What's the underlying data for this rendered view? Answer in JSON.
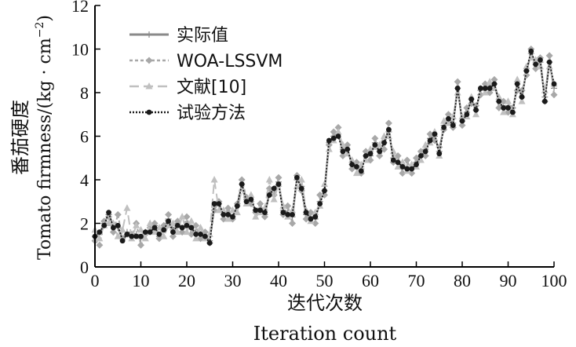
{
  "chart_data": {
    "type": "line",
    "xlabel_cn": "迭代次数",
    "xlabel_en": "Iteration count",
    "ylabel_cn": "番茄硬度",
    "ylabel_en": "Tomato firmness/(kg · cm",
    "ylabel_sup": "−2",
    "ylabel_end": ")",
    "xlim": [
      0,
      100
    ],
    "ylim": [
      0,
      12
    ],
    "xticks": [
      0,
      10,
      20,
      30,
      40,
      50,
      60,
      70,
      80,
      90,
      100
    ],
    "yticks": [
      0,
      2,
      4,
      6,
      8,
      10,
      12
    ],
    "legend_position": "top-left",
    "x": [
      0,
      1,
      2,
      3,
      4,
      5,
      6,
      7,
      8,
      9,
      10,
      11,
      12,
      13,
      14,
      15,
      16,
      17,
      18,
      19,
      20,
      21,
      22,
      23,
      24,
      25,
      26,
      27,
      28,
      29,
      30,
      31,
      32,
      33,
      34,
      35,
      36,
      37,
      38,
      39,
      40,
      41,
      42,
      43,
      44,
      45,
      46,
      47,
      48,
      49,
      50,
      51,
      52,
      53,
      54,
      55,
      56,
      57,
      58,
      59,
      60,
      61,
      62,
      63,
      64,
      65,
      66,
      67,
      68,
      69,
      70,
      71,
      72,
      73,
      74,
      75,
      76,
      77,
      78,
      79,
      80,
      81,
      82,
      83,
      84,
      85,
      86,
      87,
      88,
      89,
      90,
      91,
      92,
      93,
      94,
      95,
      96,
      97,
      98,
      99,
      100
    ],
    "series": [
      {
        "name": "实际值",
        "color": "#8a8a8a",
        "values": [
          1.4,
          1.5,
          2.0,
          2.4,
          1.9,
          1.8,
          1.3,
          1.6,
          1.5,
          1.5,
          1.3,
          1.6,
          1.6,
          1.9,
          1.4,
          1.8,
          2.2,
          1.7,
          2.0,
          1.8,
          2.0,
          1.8,
          1.6,
          1.5,
          1.4,
          1.2,
          2.8,
          2.9,
          2.4,
          2.5,
          2.3,
          2.8,
          3.8,
          3.1,
          3.0,
          2.6,
          2.7,
          2.4,
          3.4,
          3.6,
          3.9,
          2.6,
          2.5,
          2.3,
          4.0,
          3.7,
          2.4,
          2.3,
          2.2,
          3.0,
          3.5,
          5.7,
          6.0,
          6.1,
          5.4,
          5.4,
          4.7,
          4.5,
          4.5,
          5.1,
          5.1,
          5.7,
          5.3,
          5.7,
          6.2,
          5.0,
          4.8,
          4.5,
          4.6,
          4.5,
          4.8,
          5.1,
          5.4,
          5.9,
          6.0,
          5.3,
          6.5,
          6.8,
          6.6,
          8.2,
          6.7,
          7.1,
          7.7,
          7.2,
          8.1,
          8.2,
          8.3,
          8.4,
          7.6,
          7.3,
          7.4,
          7.1,
          8.4,
          7.8,
          9.0,
          9.8,
          9.3,
          9.4,
          7.8,
          9.4,
          8.2
        ]
      },
      {
        "name": "WOA-LSSVM",
        "color": "#a8a8a8",
        "values": [
          1.2,
          1.0,
          2.1,
          2.3,
          1.6,
          2.4,
          1.3,
          1.5,
          1.4,
          2.0,
          1.0,
          1.5,
          1.8,
          2.0,
          1.3,
          1.9,
          2.4,
          1.4,
          2.1,
          1.6,
          2.3,
          1.5,
          1.9,
          1.3,
          1.6,
          1.1,
          2.6,
          3.0,
          2.2,
          2.7,
          2.2,
          2.9,
          4.0,
          3.2,
          2.9,
          2.5,
          2.9,
          2.3,
          3.6,
          3.3,
          4.1,
          2.4,
          2.8,
          2.0,
          4.2,
          3.5,
          2.2,
          2.5,
          2.0,
          3.3,
          3.3,
          5.6,
          6.2,
          6.4,
          5.1,
          5.6,
          4.5,
          4.8,
          4.3,
          5.3,
          4.9,
          5.9,
          5.1,
          5.4,
          6.6,
          4.8,
          5.1,
          4.3,
          4.9,
          4.3,
          5.0,
          5.3,
          5.1,
          6.1,
          5.8,
          5.5,
          6.3,
          7.0,
          6.4,
          8.5,
          6.5,
          7.3,
          7.5,
          7.4,
          7.9,
          8.4,
          8.0,
          8.6,
          7.3,
          7.6,
          7.1,
          7.3,
          8.1,
          8.1,
          8.8,
          10.0,
          9.1,
          9.6,
          7.6,
          9.7,
          7.9
        ]
      },
      {
        "name": "文献[10]",
        "color": "#c0c0c0",
        "values": [
          1.7,
          1.3,
          1.9,
          2.0,
          2.0,
          1.4,
          1.7,
          2.7,
          1.3,
          1.9,
          1.7,
          1.3,
          2.0,
          1.6,
          1.8,
          1.4,
          1.9,
          2.0,
          1.6,
          2.3,
          1.6,
          2.1,
          1.3,
          1.8,
          1.3,
          1.5,
          4.0,
          2.6,
          2.6,
          2.2,
          2.6,
          2.5,
          3.6,
          2.9,
          3.3,
          2.3,
          2.5,
          2.7,
          4.0,
          3.1,
          3.8,
          2.8,
          2.3,
          2.6,
          3.7,
          4.0,
          2.6,
          2.1,
          2.5,
          2.8,
          3.8,
          5.4,
          5.8,
          6.2,
          5.6,
          5.2,
          4.9,
          4.3,
          4.7,
          4.9,
          5.4,
          5.5,
          5.6,
          6.0,
          6.0,
          5.3,
          4.6,
          4.8,
          4.4,
          4.7,
          4.6,
          4.9,
          5.6,
          5.7,
          6.2,
          5.1,
          6.7,
          6.6,
          6.9,
          8.0,
          6.9,
          6.9,
          7.8,
          7.0,
          8.2,
          8.0,
          8.5,
          8.2,
          7.8,
          7.1,
          7.6,
          7.0,
          8.6,
          7.6,
          9.2,
          9.6,
          9.5,
          9.2,
          8.1,
          9.2,
          8.4
        ]
      },
      {
        "name": "试验方法",
        "color": "#1a1a1a",
        "values": [
          1.4,
          1.6,
          1.9,
          2.5,
          1.8,
          1.9,
          1.2,
          1.5,
          1.4,
          1.4,
          1.4,
          1.6,
          1.6,
          1.8,
          1.5,
          1.7,
          2.1,
          1.6,
          1.9,
          1.8,
          1.9,
          1.8,
          1.5,
          1.5,
          1.4,
          1.1,
          2.9,
          2.9,
          2.4,
          2.4,
          2.3,
          2.8,
          3.8,
          3.0,
          3.1,
          2.6,
          2.6,
          2.5,
          3.3,
          3.6,
          3.8,
          2.5,
          2.4,
          2.4,
          4.1,
          3.6,
          2.5,
          2.2,
          2.3,
          2.9,
          3.5,
          5.8,
          5.9,
          6.0,
          5.3,
          5.4,
          4.7,
          4.6,
          4.4,
          5.1,
          5.2,
          5.6,
          5.3,
          5.7,
          6.3,
          4.9,
          4.8,
          4.6,
          4.5,
          4.5,
          4.7,
          5.1,
          5.3,
          5.8,
          6.1,
          5.2,
          6.4,
          6.8,
          6.5,
          8.2,
          6.7,
          7.0,
          7.7,
          7.2,
          8.2,
          8.2,
          8.2,
          8.4,
          7.6,
          7.3,
          7.3,
          7.1,
          8.4,
          7.8,
          9.0,
          9.9,
          9.3,
          9.5,
          7.6,
          9.4,
          8.4
        ]
      }
    ]
  }
}
